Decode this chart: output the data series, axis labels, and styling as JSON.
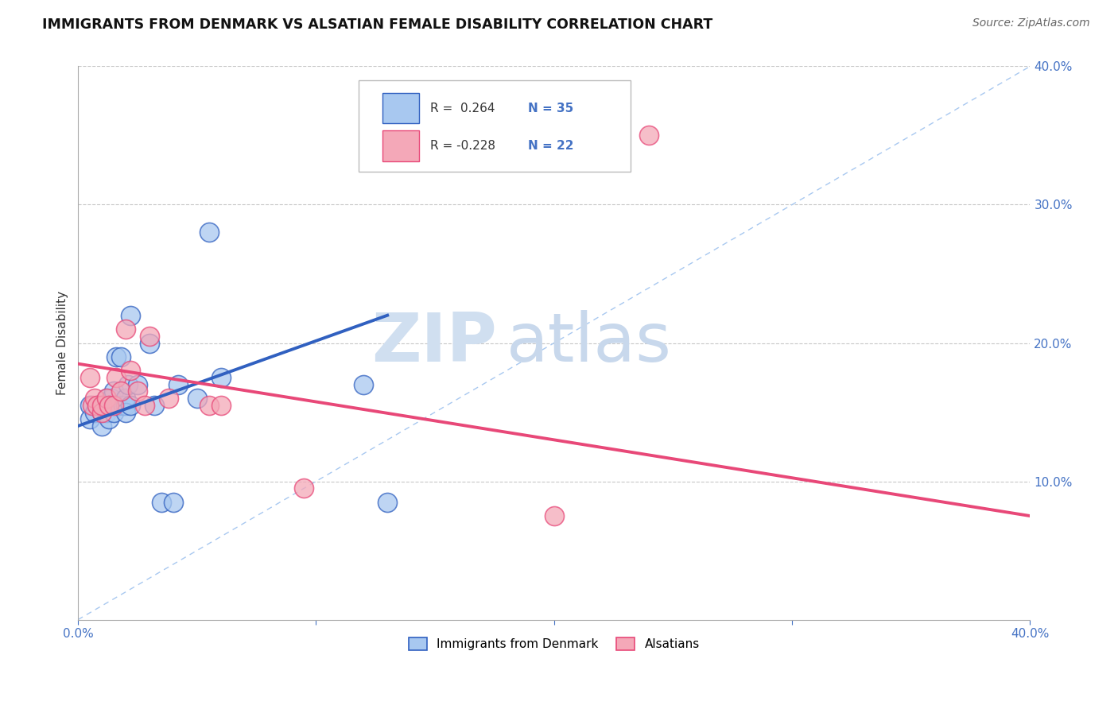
{
  "title": "IMMIGRANTS FROM DENMARK VS ALSATIAN FEMALE DISABILITY CORRELATION CHART",
  "source": "Source: ZipAtlas.com",
  "ylabel": "Female Disability",
  "xlim": [
    0.0,
    0.4
  ],
  "ylim": [
    0.0,
    0.4
  ],
  "ytick_values": [
    0.1,
    0.2,
    0.3,
    0.4
  ],
  "xtick_values": [
    0.0,
    0.1,
    0.2,
    0.3,
    0.4
  ],
  "blue_r": 0.264,
  "blue_n": 35,
  "pink_r": -0.228,
  "pink_n": 22,
  "blue_color": "#A8C8F0",
  "pink_color": "#F4A8B8",
  "blue_line_color": "#3060C0",
  "pink_line_color": "#E84878",
  "dashed_line_color": "#A8C8F0",
  "watermark_zip": "ZIP",
  "watermark_atlas": "atlas",
  "blue_scatter_x": [
    0.005,
    0.005,
    0.007,
    0.008,
    0.01,
    0.01,
    0.01,
    0.012,
    0.012,
    0.013,
    0.013,
    0.014,
    0.015,
    0.015,
    0.016,
    0.017,
    0.018,
    0.019,
    0.02,
    0.02,
    0.02,
    0.021,
    0.022,
    0.022,
    0.025,
    0.03,
    0.032,
    0.035,
    0.04,
    0.042,
    0.05,
    0.055,
    0.06,
    0.12,
    0.13
  ],
  "blue_scatter_y": [
    0.155,
    0.145,
    0.15,
    0.155,
    0.155,
    0.15,
    0.14,
    0.16,
    0.15,
    0.155,
    0.145,
    0.16,
    0.165,
    0.15,
    0.19,
    0.155,
    0.19,
    0.155,
    0.155,
    0.16,
    0.15,
    0.17,
    0.155,
    0.22,
    0.17,
    0.2,
    0.155,
    0.085,
    0.085,
    0.17,
    0.16,
    0.28,
    0.175,
    0.17,
    0.085
  ],
  "pink_scatter_x": [
    0.005,
    0.006,
    0.007,
    0.008,
    0.01,
    0.01,
    0.012,
    0.013,
    0.015,
    0.016,
    0.018,
    0.02,
    0.022,
    0.025,
    0.028,
    0.03,
    0.038,
    0.055,
    0.06,
    0.095,
    0.2,
    0.24
  ],
  "pink_scatter_y": [
    0.175,
    0.155,
    0.16,
    0.155,
    0.15,
    0.155,
    0.16,
    0.155,
    0.155,
    0.175,
    0.165,
    0.21,
    0.18,
    0.165,
    0.155,
    0.205,
    0.16,
    0.155,
    0.155,
    0.095,
    0.075,
    0.35
  ],
  "blue_line_x0": 0.0,
  "blue_line_y0": 0.14,
  "blue_line_x1": 0.13,
  "blue_line_y1": 0.22,
  "pink_line_x0": 0.0,
  "pink_line_y0": 0.185,
  "pink_line_x1": 0.4,
  "pink_line_y1": 0.075
}
